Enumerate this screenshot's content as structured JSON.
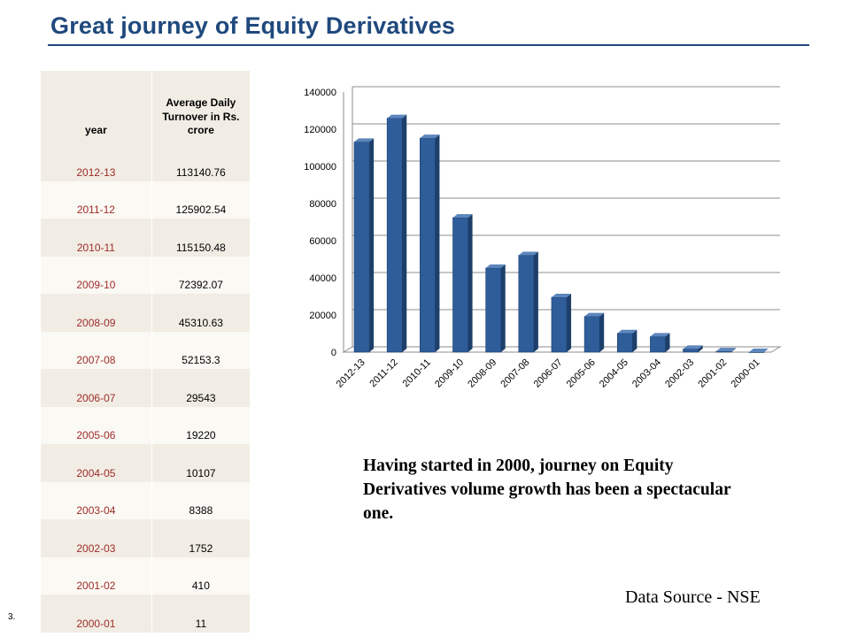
{
  "page": {
    "title": "Great journey of Equity Derivatives",
    "page_number": "3.",
    "note": "Having started in 2000,  journey on Equity Derivatives volume growth has been a spectacular one.",
    "source": "Data Source - NSE"
  },
  "table": {
    "headers": [
      "year",
      "Average Daily Turnover in Rs. crore"
    ],
    "rows": [
      {
        "year": "2012-13",
        "value": "113140.76"
      },
      {
        "year": "2011-12",
        "value": "125902.54"
      },
      {
        "year": "2010-11",
        "value": "115150.48"
      },
      {
        "year": "2009-10",
        "value": "72392.07"
      },
      {
        "year": "2008-09",
        "value": "45310.63"
      },
      {
        "year": "2007-08",
        "value": "52153.3"
      },
      {
        "year": "2006-07",
        "value": "29543"
      },
      {
        "year": "2005-06",
        "value": "19220"
      },
      {
        "year": "2004-05",
        "value": "10107"
      },
      {
        "year": "2003-04",
        "value": "8388"
      },
      {
        "year": "2002-03",
        "value": "1752"
      },
      {
        "year": "2001-02",
        "value": "410"
      },
      {
        "year": "2000-01",
        "value": "11"
      }
    ]
  },
  "chart_data": {
    "type": "bar",
    "categories": [
      "2012-13",
      "2011-12",
      "2010-11",
      "2009-10",
      "2008-09",
      "2007-08",
      "2006-07",
      "2005-06",
      "2004-05",
      "2003-04",
      "2002-03",
      "2001-02",
      "2000-01"
    ],
    "values": [
      113140.76,
      125902.54,
      115150.48,
      72392.07,
      45310.63,
      52153.3,
      29543,
      19220,
      10107,
      8388,
      1752,
      410,
      11
    ],
    "title": "",
    "xlabel": "",
    "ylabel": "",
    "ylim": [
      0,
      140000
    ],
    "yticks": [
      0,
      20000,
      40000,
      60000,
      80000,
      100000,
      120000,
      140000
    ],
    "grid": true,
    "legend": "none",
    "bar_color": "#2e5d9a"
  }
}
